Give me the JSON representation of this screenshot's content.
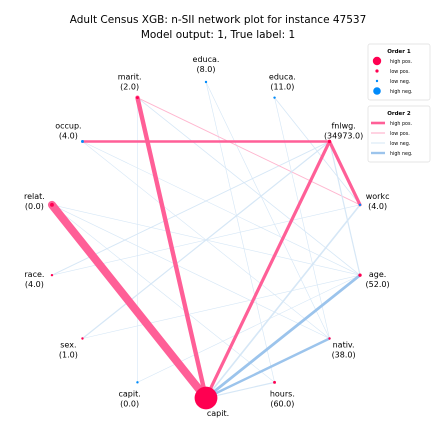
{
  "chart_data": {
    "type": "network",
    "title": "Adult Census XGB: n-SII network plot for instance 47537",
    "subtitle": "Model output: 1, True label: 1",
    "nodes": [
      {
        "name": "capit.",
        "value": "",
        "order1": 0.95,
        "sign": "pos"
      },
      {
        "name": "hours.",
        "value": "(60.0)",
        "order1": 0.12,
        "sign": "pos"
      },
      {
        "name": "nativ.",
        "value": "(38.0)",
        "order1": 0.02,
        "sign": "pos"
      },
      {
        "name": "age.",
        "value": "(52.0)",
        "order1": 0.14,
        "sign": "pos"
      },
      {
        "name": "workc",
        "value": "(4.0)",
        "order1": 0.08,
        "sign": "neg"
      },
      {
        "name": "fnlwg.",
        "value": "(34973.0)",
        "order1": 0.14,
        "sign": "pos"
      },
      {
        "name": "educa.",
        "value": "(11.0)",
        "order1": 0.02,
        "sign": "neg"
      },
      {
        "name": "educa.",
        "value": "(8.0)",
        "order1": 0.07,
        "sign": "neg"
      },
      {
        "name": "marit.",
        "value": "(2.0)",
        "order1": 0.12,
        "sign": "pos"
      },
      {
        "name": "occup.",
        "value": "(4.0)",
        "order1": 0.12,
        "sign": "neg"
      },
      {
        "name": "relat.",
        "value": "(0.0)",
        "order1": 0.16,
        "sign": "pos"
      },
      {
        "name": "race.",
        "value": "(4.0)",
        "order1": 0.02,
        "sign": "pos"
      },
      {
        "name": "sex.",
        "value": "(1.0)",
        "order1": 0.05,
        "sign": "pos"
      },
      {
        "name": "capit.",
        "value": "(0.0)",
        "order1": 0.07,
        "sign": "neg"
      }
    ],
    "edges": [
      {
        "source": 0,
        "target": 10,
        "strength": 1.0,
        "sign": "pos"
      },
      {
        "source": 0,
        "target": 8,
        "strength": 0.55,
        "sign": "pos"
      },
      {
        "source": 0,
        "target": 5,
        "strength": 0.4,
        "sign": "pos"
      },
      {
        "source": 0,
        "target": 3,
        "strength": 0.35,
        "sign": "neg"
      },
      {
        "source": 0,
        "target": 2,
        "strength": 0.3,
        "sign": "neg"
      },
      {
        "source": 0,
        "target": 4,
        "strength": 0.2,
        "sign": "neg"
      },
      {
        "source": 0,
        "target": 1,
        "strength": 0.15,
        "sign": "neg"
      },
      {
        "source": 5,
        "target": 4,
        "strength": 0.4,
        "sign": "pos"
      },
      {
        "source": 5,
        "target": 9,
        "strength": 0.3,
        "sign": "pos"
      },
      {
        "source": 5,
        "target": 12,
        "strength": 0.15,
        "sign": "neg"
      },
      {
        "source": 5,
        "target": 11,
        "strength": 0.12,
        "sign": "neg"
      },
      {
        "source": 5,
        "target": 3,
        "strength": 0.15,
        "sign": "neg"
      },
      {
        "source": 8,
        "target": 4,
        "strength": 0.12,
        "sign": "pos"
      },
      {
        "source": 8,
        "target": 3,
        "strength": 0.1,
        "sign": "neg"
      },
      {
        "source": 6,
        "target": 4,
        "strength": 0.1,
        "sign": "neg"
      },
      {
        "source": 6,
        "target": 2,
        "strength": 0.08,
        "sign": "neg"
      },
      {
        "source": 7,
        "target": 2,
        "strength": 0.08,
        "sign": "neg"
      },
      {
        "source": 7,
        "target": 1,
        "strength": 0.08,
        "sign": "neg"
      },
      {
        "source": 9,
        "target": 3,
        "strength": 0.08,
        "sign": "neg"
      },
      {
        "source": 9,
        "target": 2,
        "strength": 0.06,
        "sign": "neg"
      },
      {
        "source": 10,
        "target": 3,
        "strength": 0.08,
        "sign": "neg"
      },
      {
        "source": 10,
        "target": 2,
        "strength": 0.08,
        "sign": "neg"
      },
      {
        "source": 10,
        "target": 1,
        "strength": 0.06,
        "sign": "neg"
      },
      {
        "source": 8,
        "target": 13,
        "strength": 0.06,
        "sign": "neg"
      },
      {
        "source": 12,
        "target": 3,
        "strength": 0.06,
        "sign": "neg"
      },
      {
        "source": 11,
        "target": 4,
        "strength": 0.06,
        "sign": "neg"
      },
      {
        "source": 13,
        "target": 3,
        "strength": 0.06,
        "sign": "neg"
      }
    ],
    "legend": [
      {
        "title": "Order 1",
        "items": [
          "high pos.",
          "low pos.",
          "low neg.",
          "high neg."
        ]
      },
      {
        "title": "Order 2",
        "items": [
          "high pos.",
          "low pos.",
          "low neg.",
          "high neg."
        ]
      }
    ],
    "legend_position": "top-right",
    "colors": {
      "pos": "#ff0051",
      "neg": "#008bfb"
    }
  }
}
